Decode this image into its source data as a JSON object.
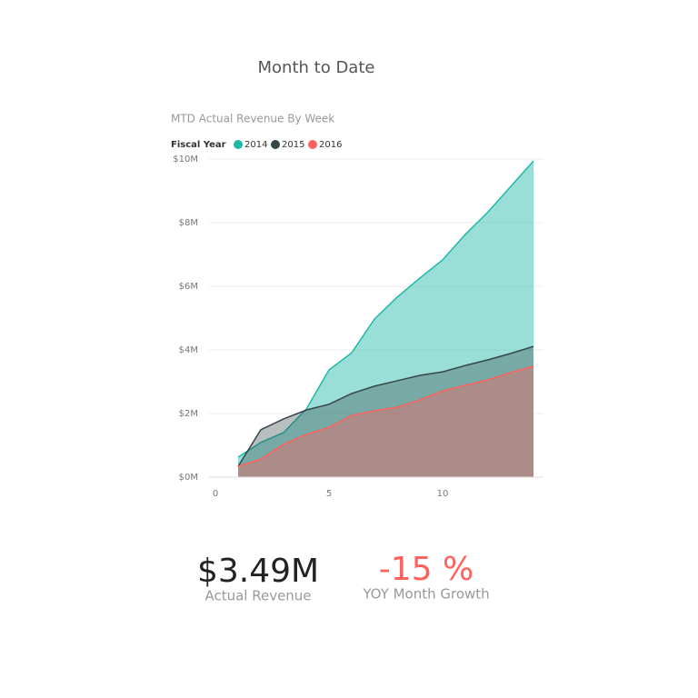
{
  "header": {
    "title": "Month to Date"
  },
  "chart_data": {
    "type": "area",
    "title": "MTD Actual Revenue By Week",
    "legend_title": "Fiscal Year",
    "x": [
      1,
      2,
      3,
      4,
      5,
      6,
      7,
      8,
      9,
      10,
      11,
      12,
      13,
      14
    ],
    "series": [
      {
        "name": "2014",
        "color": "#1fb8a6",
        "values": [
          0.63,
          1.09,
          1.4,
          2.14,
          3.37,
          3.91,
          4.97,
          5.66,
          6.26,
          6.83,
          7.63,
          8.34,
          9.14,
          9.94
        ]
      },
      {
        "name": "2015",
        "color": "#374649",
        "values": [
          0.34,
          1.49,
          1.83,
          2.11,
          2.29,
          2.63,
          2.86,
          3.03,
          3.2,
          3.31,
          3.51,
          3.69,
          3.89,
          4.11
        ]
      },
      {
        "name": "2016",
        "color": "#fd625e",
        "values": [
          0.34,
          0.57,
          1.03,
          1.34,
          1.57,
          1.94,
          2.09,
          2.2,
          2.43,
          2.71,
          2.89,
          3.06,
          3.29,
          3.49
        ]
      }
    ],
    "xlim": [
      -0.28,
      14.44
    ],
    "xticks": [
      0,
      5,
      10
    ],
    "ylim": [
      0,
      10
    ],
    "yticks": [
      {
        "value": 0,
        "label": "$0M"
      },
      {
        "value": 2,
        "label": "$2M"
      },
      {
        "value": 4,
        "label": "$4M"
      },
      {
        "value": 6,
        "label": "$6M"
      },
      {
        "value": 8,
        "label": "$8M"
      },
      {
        "value": 10,
        "label": "$10M"
      }
    ],
    "grid": true
  },
  "cards": [
    {
      "value": "$3.49M",
      "label": "Actual Revenue"
    },
    {
      "value": "-15 %",
      "label": "YOY Month Growth"
    }
  ]
}
